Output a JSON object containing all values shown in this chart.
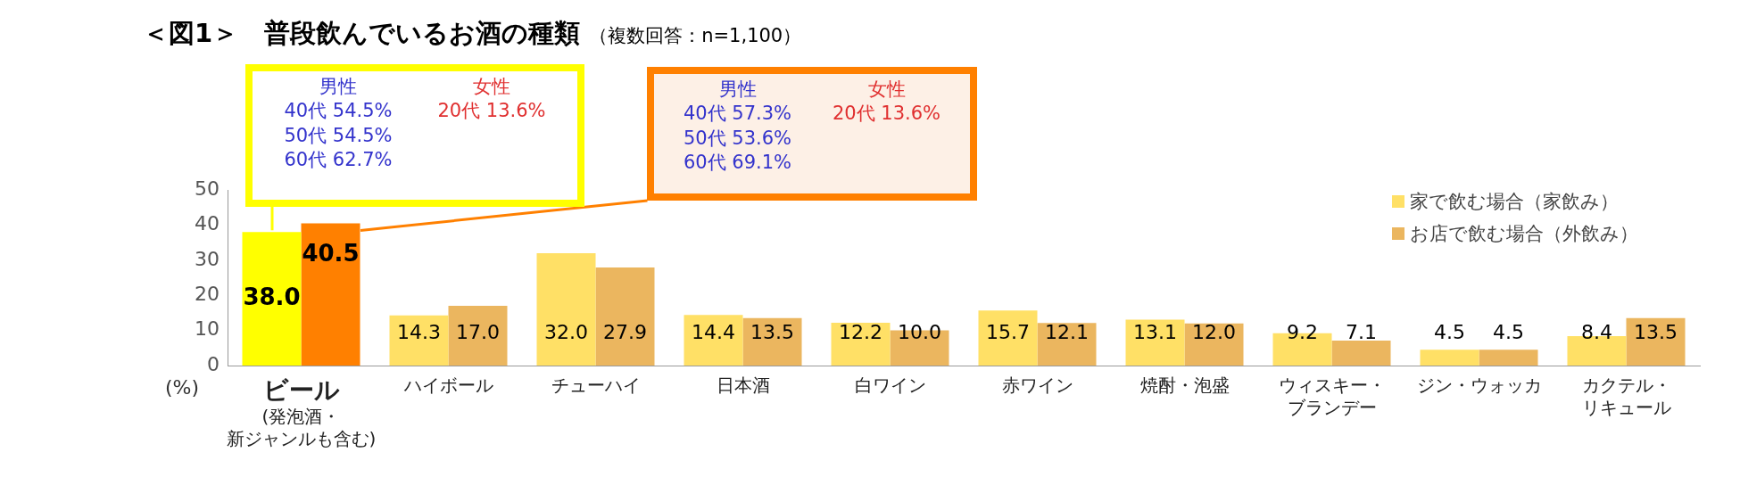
{
  "chart_data": {
    "type": "bar",
    "title": "＜図1＞　普段飲んでいるお酒の種類",
    "subtitle": "（複数回答：n=1,100）",
    "ylabel": "(%)",
    "categories": [
      "ビール(発泡酒・新ジャンルも含む)",
      "ハイボール",
      "チューハイ",
      "日本酒",
      "白ワイン",
      "赤ワイン",
      "焼酎・泡盛",
      "ウィスキー・ブランデー",
      "ジン・ウォッカ",
      "カクテル・リキュール"
    ],
    "series": [
      {
        "name": "家で飲む場合（家飲み）",
        "color": "#ffe066",
        "colors": [
          "#ffff00",
          "#ffe066",
          "#ffe066",
          "#ffe066",
          "#ffe066",
          "#ffe066",
          "#ffe066",
          "#ffe066",
          "#ffe066",
          "#ffe066"
        ],
        "values": [
          38.0,
          14.3,
          32.0,
          14.4,
          12.2,
          15.7,
          13.1,
          9.2,
          4.5,
          8.4
        ],
        "value_labels": [
          "38.0",
          "14.3",
          "32.0",
          "14.4",
          "12.2",
          "15.7",
          "13.1",
          "9.2",
          "4.5",
          "8.4"
        ]
      },
      {
        "name": "お店で飲む場合（外飲み）",
        "color": "#ebb65f",
        "colors": [
          "#ff8000",
          "#ebb65f",
          "#ebb65f",
          "#ebb65f",
          "#ebb65f",
          "#ebb65f",
          "#ebb65f",
          "#ebb65f",
          "#ebb65f",
          "#ebb65f"
        ],
        "values": [
          40.5,
          17.0,
          27.9,
          13.5,
          10.0,
          12.1,
          12.0,
          7.1,
          4.5,
          13.5
        ],
        "value_labels": [
          "40.5",
          "17.0",
          "27.9",
          "13.5",
          "10.0",
          "12.1",
          "12.0",
          "7.1",
          "4.5",
          "13.5"
        ]
      }
    ],
    "ylim": [
      0,
      50
    ],
    "yticks": [
      0,
      10,
      20,
      30,
      40,
      50
    ],
    "grid": false,
    "legend": "top right",
    "annotations": [
      "男性\n40代 54.5%\n50代 54.5%\n60代 62.7%",
      "女性\n20代 13.6%",
      "男性\n40代 57.3%\n50代 53.6%\n60代 69.1%",
      "女性\n20代 13.6%"
    ]
  }
}
